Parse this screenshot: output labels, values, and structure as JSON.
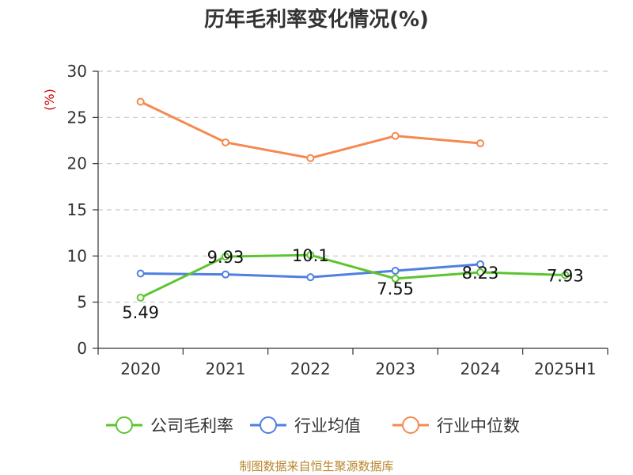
{
  "chart_data": {
    "type": "line",
    "title": "历年毛利率变化情况(%)",
    "ylabel": "(%)",
    "xlabel": "",
    "ylim": [
      0,
      30
    ],
    "yticks": [
      0,
      5,
      10,
      15,
      20,
      25,
      30
    ],
    "grid": true,
    "legend_position": "bottom",
    "categories": [
      "2020",
      "2021",
      "2022",
      "2023",
      "2024",
      "2025H1"
    ],
    "series": [
      {
        "name": "公司毛利率",
        "color": "#5cc52e",
        "values": [
          5.49,
          9.93,
          10.1,
          7.55,
          8.23,
          7.93
        ],
        "labels": [
          "5.49",
          "9.93",
          "10.1",
          "7.55",
          "8.23",
          "7.93"
        ]
      },
      {
        "name": "行业均值",
        "color": "#4f7fe0",
        "values": [
          8.1,
          8.0,
          7.7,
          8.4,
          9.1,
          null
        ]
      },
      {
        "name": "行业中位数",
        "color": "#f5894f",
        "values": [
          26.7,
          22.3,
          20.6,
          23.0,
          22.2,
          null
        ]
      }
    ]
  },
  "source": "制图数据来自恒生聚源数据库"
}
